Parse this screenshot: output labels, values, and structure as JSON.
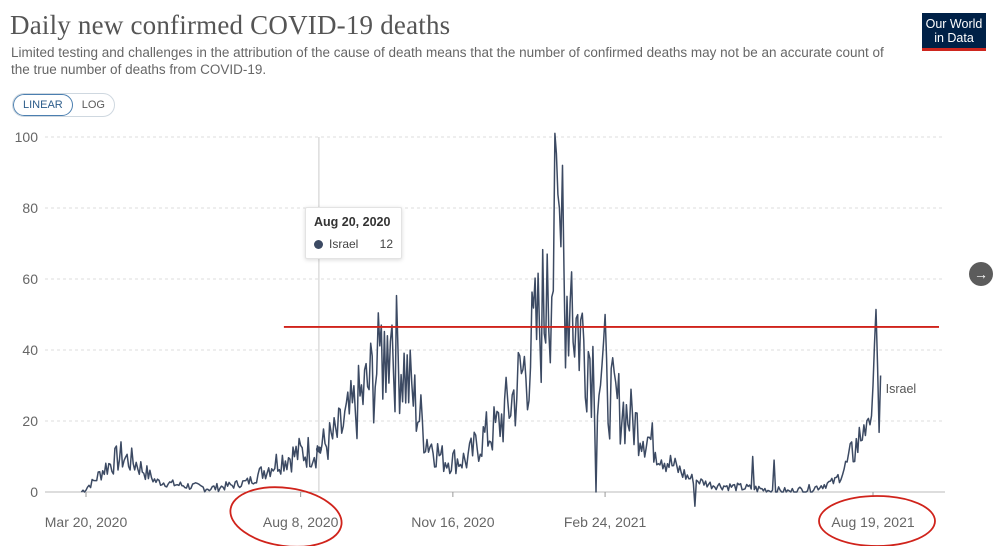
{
  "header": {
    "title": "Daily new confirmed COVID-19 deaths",
    "subtitle": "Limited testing and challenges in the attribution of the cause of death means that the number of confirmed deaths may not be an accurate count of the true number of deaths from COVID-19.",
    "logo_line1": "Our World",
    "logo_line2": "in Data"
  },
  "controls": {
    "linear_label": "LINEAR",
    "log_label": "LOG",
    "next_glyph": "→"
  },
  "tooltip": {
    "date": "Aug 20, 2020",
    "series": "Israel",
    "value": "12"
  },
  "colors": {
    "series": "#3c4a63",
    "grid": "#dddddd",
    "annotation": "#d0231b",
    "hover_line": "#cccccc",
    "axis_text": "#666666"
  },
  "chart_data": {
    "type": "line",
    "title": "Daily new confirmed COVID-19 deaths",
    "xlabel": "",
    "ylabel": "",
    "ylim": [
      0,
      100
    ],
    "yticks": [
      0,
      20,
      40,
      60,
      80,
      100
    ],
    "x_start": "2020-03-20",
    "x_end": "2021-08-24",
    "xticks": [
      {
        "date": "2020-03-20",
        "label": "Mar 20, 2020"
      },
      {
        "date": "2020-08-08",
        "label": "Aug 8, 2020"
      },
      {
        "date": "2020-11-16",
        "label": "Nov 16, 2020"
      },
      {
        "date": "2021-02-24",
        "label": "Feb 24, 2021"
      },
      {
        "date": "2021-08-19",
        "label": "Aug 19, 2021"
      }
    ],
    "series": [
      {
        "name": "Israel",
        "label": "Israel",
        "anchors": [
          {
            "date": "2020-03-17",
            "value": 0
          },
          {
            "date": "2020-03-25",
            "value": 3
          },
          {
            "date": "2020-04-02",
            "value": 7
          },
          {
            "date": "2020-04-12",
            "value": 10
          },
          {
            "date": "2020-04-22",
            "value": 8
          },
          {
            "date": "2020-05-05",
            "value": 3
          },
          {
            "date": "2020-05-20",
            "value": 2
          },
          {
            "date": "2020-06-10",
            "value": 1
          },
          {
            "date": "2020-06-25",
            "value": 2
          },
          {
            "date": "2020-07-05",
            "value": 3
          },
          {
            "date": "2020-07-15",
            "value": 6
          },
          {
            "date": "2020-07-25",
            "value": 9
          },
          {
            "date": "2020-08-08",
            "value": 11
          },
          {
            "date": "2020-08-20",
            "value": 12
          },
          {
            "date": "2020-09-01",
            "value": 16
          },
          {
            "date": "2020-09-15",
            "value": 25
          },
          {
            "date": "2020-09-28",
            "value": 35
          },
          {
            "date": "2020-10-05",
            "value": 42
          },
          {
            "date": "2020-10-12",
            "value": 38
          },
          {
            "date": "2020-10-20",
            "value": 28
          },
          {
            "date": "2020-10-30",
            "value": 15
          },
          {
            "date": "2020-11-10",
            "value": 9
          },
          {
            "date": "2020-11-25",
            "value": 9
          },
          {
            "date": "2020-12-05",
            "value": 15
          },
          {
            "date": "2020-12-15",
            "value": 18
          },
          {
            "date": "2020-12-25",
            "value": 26
          },
          {
            "date": "2021-01-05",
            "value": 38
          },
          {
            "date": "2021-01-15",
            "value": 52
          },
          {
            "date": "2021-01-22",
            "value": 68
          },
          {
            "date": "2021-01-28",
            "value": 60
          },
          {
            "date": "2021-02-05",
            "value": 48
          },
          {
            "date": "2021-02-15",
            "value": 38
          },
          {
            "date": "2021-02-25",
            "value": 28
          },
          {
            "date": "2021-03-10",
            "value": 22
          },
          {
            "date": "2021-03-25",
            "value": 15
          },
          {
            "date": "2021-04-05",
            "value": 9
          },
          {
            "date": "2021-04-20",
            "value": 4
          },
          {
            "date": "2021-05-05",
            "value": 2
          },
          {
            "date": "2021-06-01",
            "value": 1
          },
          {
            "date": "2021-06-25",
            "value": 0
          },
          {
            "date": "2021-07-10",
            "value": 1
          },
          {
            "date": "2021-07-25",
            "value": 3
          },
          {
            "date": "2021-08-01",
            "value": 7
          },
          {
            "date": "2021-08-08",
            "value": 13
          },
          {
            "date": "2021-08-14",
            "value": 17
          },
          {
            "date": "2021-08-18",
            "value": 21
          },
          {
            "date": "2021-08-21",
            "value": 46
          },
          {
            "date": "2021-08-23",
            "value": 20
          },
          {
            "date": "2021-08-24",
            "value": 28
          }
        ],
        "spikes": [
          {
            "date": "2020-09-30",
            "value": 47
          },
          {
            "date": "2020-10-04",
            "value": 44
          },
          {
            "date": "2020-10-07",
            "value": 47
          },
          {
            "date": "2021-01-17",
            "value": 67
          },
          {
            "date": "2021-01-22",
            "value": 101
          },
          {
            "date": "2021-01-25",
            "value": 80
          },
          {
            "date": "2021-01-27",
            "value": 92
          },
          {
            "date": "2021-02-02",
            "value": 62
          },
          {
            "date": "2021-02-18",
            "value": 0
          },
          {
            "date": "2021-02-24",
            "value": 50
          },
          {
            "date": "2021-04-24",
            "value": -4
          },
          {
            "date": "2021-06-01",
            "value": 10
          },
          {
            "date": "2021-06-15",
            "value": 9
          }
        ]
      }
    ],
    "annotations": [
      {
        "type": "hline",
        "value": 46.5,
        "x_from": "2020-07-28",
        "x_to": "2021-08-24"
      },
      {
        "type": "vline",
        "date": "2020-08-20"
      },
      {
        "type": "ellipse",
        "label_ref": "Aug 8, 2020"
      },
      {
        "type": "ellipse",
        "label_ref": "Aug 19, 2021"
      }
    ]
  }
}
